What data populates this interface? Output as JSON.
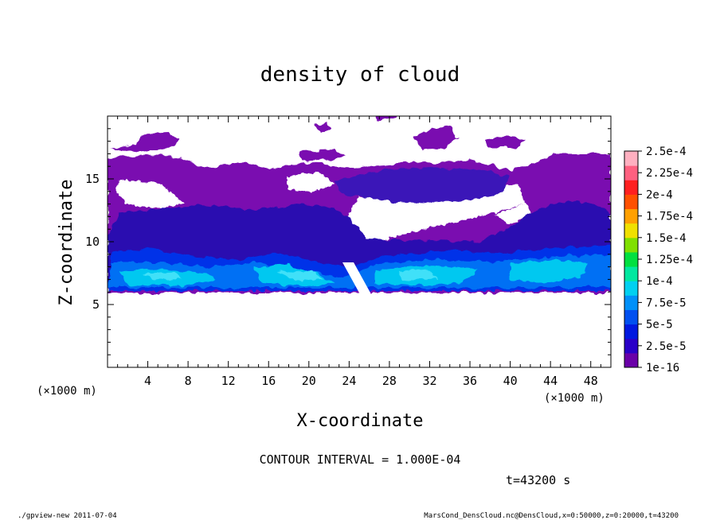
{
  "chart_data": {
    "type": "heatmap",
    "title": "density of cloud",
    "xlabel": "X-coordinate",
    "ylabel": "Z-coordinate",
    "xunit": "(×1000 m)",
    "yunit": "(×1000 m)",
    "xlim": [
      0,
      50
    ],
    "ylim": [
      0,
      20
    ],
    "xticks": [
      "4",
      "8",
      "12",
      "16",
      "20",
      "24",
      "28",
      "32",
      "36",
      "40",
      "44",
      "48"
    ],
    "yticks": [
      "5",
      "10",
      "15"
    ],
    "colorbar": {
      "labels": [
        "1e-16",
        "2.5e-5",
        "5e-5",
        "7.5e-5",
        "1e-4",
        "1.25e-4",
        "1.5e-4",
        "1.75e-4",
        "2e-4",
        "2.25e-4",
        "2.5e-4"
      ],
      "colors": [
        "#6a00a8",
        "#2a00c8",
        "#0018e0",
        "#0050f0",
        "#0090f8",
        "#00d0f0",
        "#00e8a0",
        "#00e040",
        "#80e000",
        "#f0e000",
        "#ffa000",
        "#ff5000",
        "#ff2020",
        "#ff6080",
        "#ffb0c0"
      ]
    },
    "contour_interval": "CONTOUR INTERVAL = 1.000E-04",
    "time": "t=43200 s"
  },
  "footer": {
    "left": "./gpview-new  2011-07-04",
    "right": "MarsCond_DensCloud.nc@DensCloud,x=0:50000,z=0:20000,t=43200"
  }
}
